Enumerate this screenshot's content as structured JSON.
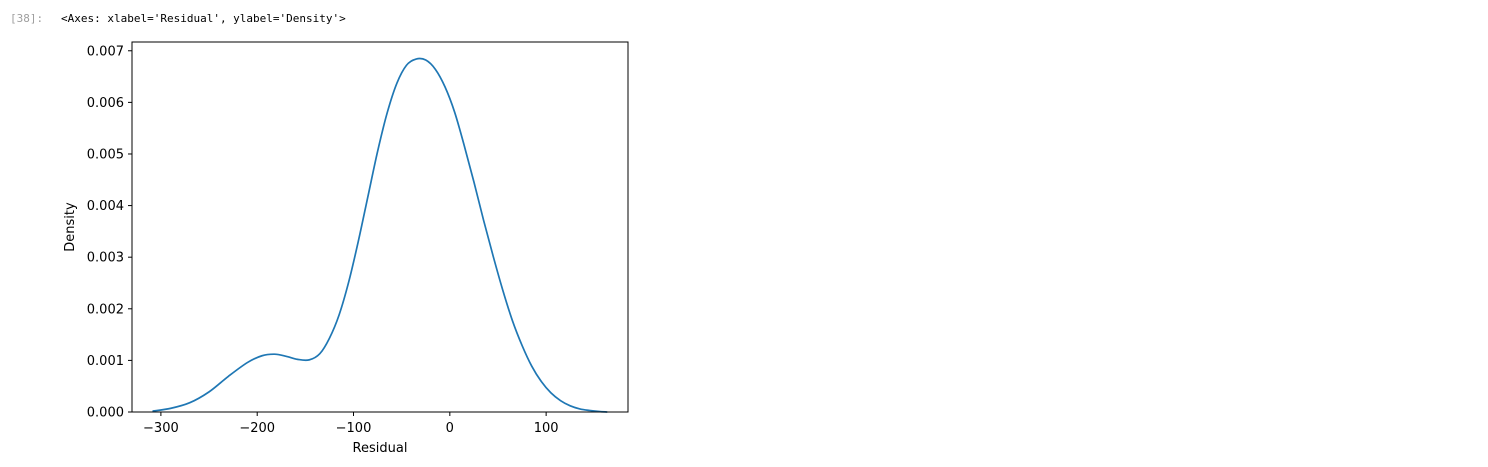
{
  "cell": {
    "prompt": "[38]:",
    "output_repr": "<Axes: xlabel='Residual', ylabel='Density'>"
  },
  "chart_data": {
    "type": "line",
    "title": "",
    "xlabel": "Residual",
    "ylabel": "Density",
    "xlim": [
      -330,
      185
    ],
    "ylim": [
      0,
      0.00717
    ],
    "grid": false,
    "legend": "none",
    "line_color": "#1f77b4",
    "xticks": [
      {
        "value": -300,
        "label": "−300"
      },
      {
        "value": -200,
        "label": "−200"
      },
      {
        "value": -100,
        "label": "−100"
      },
      {
        "value": 0,
        "label": "0"
      },
      {
        "value": 100,
        "label": "100"
      }
    ],
    "yticks": [
      {
        "value": 0.0,
        "label": "0.000"
      },
      {
        "value": 0.001,
        "label": "0.001"
      },
      {
        "value": 0.002,
        "label": "0.002"
      },
      {
        "value": 0.003,
        "label": "0.003"
      },
      {
        "value": 0.004,
        "label": "0.004"
      },
      {
        "value": 0.005,
        "label": "0.005"
      },
      {
        "value": 0.006,
        "label": "0.006"
      },
      {
        "value": 0.007,
        "label": "0.007"
      }
    ],
    "series": [
      {
        "x": [
          -308,
          -290,
          -270,
          -250,
          -230,
          -210,
          -195,
          -182,
          -170,
          -158,
          -146,
          -135,
          -125,
          -115,
          -105,
          -95,
          -85,
          -75,
          -65,
          -55,
          -45,
          -35,
          -25,
          -15,
          -5,
          5,
          15,
          25,
          35,
          45,
          55,
          65,
          75,
          85,
          95,
          105,
          115,
          125,
          135,
          145,
          155,
          163
        ],
        "y": [
          2e-05,
          7e-05,
          0.00018,
          0.00039,
          0.00069,
          0.00096,
          0.00109,
          0.00112,
          0.00108,
          0.00102,
          0.00101,
          0.00113,
          0.00143,
          0.00188,
          0.00252,
          0.00331,
          0.00418,
          0.00505,
          0.0058,
          0.00637,
          0.00672,
          0.00684,
          0.00682,
          0.00664,
          0.0063,
          0.00581,
          0.00516,
          0.00446,
          0.00372,
          0.00302,
          0.00236,
          0.00177,
          0.00129,
          0.00089,
          0.00059,
          0.00037,
          0.00022,
          0.00012,
          6e-05,
          3e-05,
          1e-05,
          0.0
        ]
      }
    ]
  }
}
